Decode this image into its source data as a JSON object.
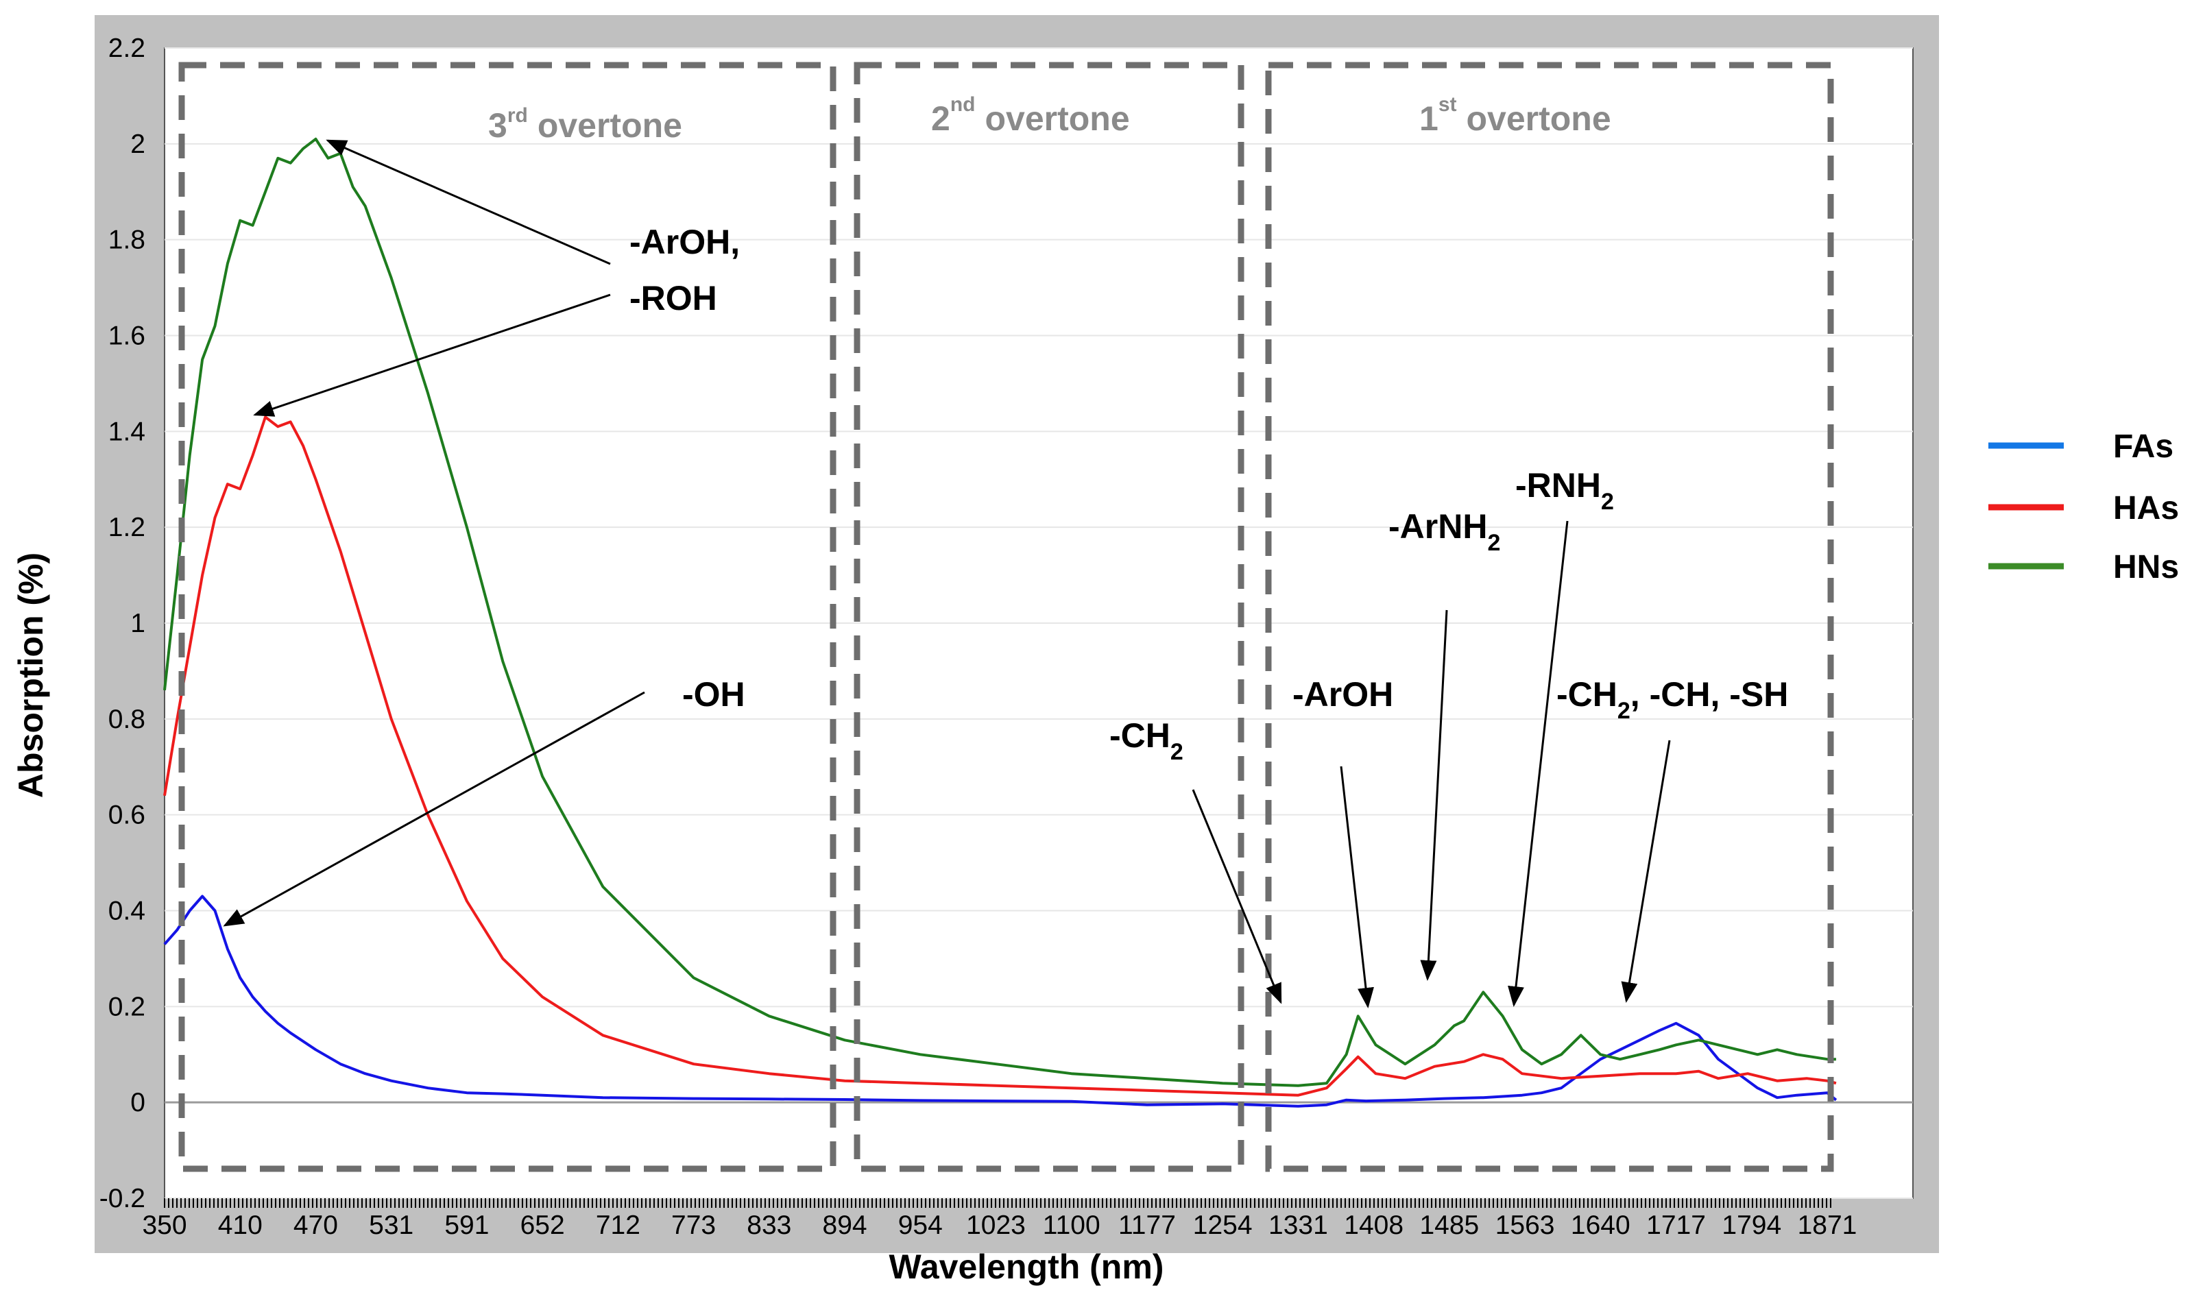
{
  "chart_data": {
    "type": "line",
    "title": "",
    "xlabel": "Wavelength  (nm)",
    "ylabel": "Absorption  (%)",
    "xlim": [
      350,
      1900
    ],
    "ylim": [
      -0.2,
      2.2
    ],
    "xtick_labels": [
      "350",
      "410",
      "470",
      "531",
      "591",
      "652",
      "712",
      "773",
      "833",
      "894",
      "954",
      "1023",
      "1100",
      "1177",
      "1254",
      "1331",
      "1408",
      "1485",
      "1563",
      "1640",
      "1717",
      "1794",
      "1871"
    ],
    "yticks": [
      -0.2,
      0,
      0.2,
      0.4,
      0.6,
      0.8,
      1,
      1.2,
      1.4,
      1.6,
      1.8,
      2,
      2.2
    ],
    "ytick_labels": [
      "-0.2",
      "0",
      "0.2",
      "0.4",
      "0.6",
      "0.8",
      "1",
      "1.2",
      "1.4",
      "1.6",
      "1.8",
      "2",
      "2.2"
    ],
    "series": [
      {
        "name": "FAs",
        "color": "#1414e6",
        "x": [
          350,
          360,
          370,
          380,
          390,
          400,
          410,
          420,
          430,
          440,
          450,
          470,
          490,
          510,
          531,
          560,
          591,
          620,
          652,
          700,
          773,
          833,
          894,
          954,
          1023,
          1100,
          1177,
          1254,
          1331,
          1360,
          1380,
          1400,
          1440,
          1480,
          1520,
          1560,
          1580,
          1600,
          1620,
          1640,
          1660,
          1680,
          1700,
          1717,
          1740,
          1760,
          1780,
          1800,
          1820,
          1840,
          1871,
          1880
        ],
        "values": [
          0.33,
          0.36,
          0.4,
          0.43,
          0.4,
          0.32,
          0.26,
          0.22,
          0.19,
          0.165,
          0.145,
          0.11,
          0.08,
          0.06,
          0.045,
          0.03,
          0.02,
          0.018,
          0.015,
          0.01,
          0.008,
          0.007,
          0.006,
          0.004,
          0.003,
          0.002,
          -0.005,
          -0.003,
          -0.008,
          -0.005,
          0.005,
          0.003,
          0.005,
          0.008,
          0.01,
          0.015,
          0.02,
          0.03,
          0.06,
          0.09,
          0.11,
          0.13,
          0.15,
          0.165,
          0.14,
          0.09,
          0.06,
          0.03,
          0.01,
          0.015,
          0.02,
          0.005
        ]
      },
      {
        "name": "HAs",
        "color": "#ee1c1c",
        "x": [
          350,
          360,
          370,
          380,
          390,
          400,
          410,
          420,
          430,
          440,
          450,
          460,
          470,
          490,
          510,
          531,
          560,
          591,
          620,
          652,
          700,
          773,
          833,
          894,
          954,
          1023,
          1100,
          1177,
          1254,
          1331,
          1360,
          1380,
          1392,
          1410,
          1440,
          1470,
          1500,
          1520,
          1540,
          1560,
          1600,
          1640,
          1680,
          1717,
          1740,
          1760,
          1790,
          1820,
          1850,
          1871,
          1880
        ],
        "values": [
          0.64,
          0.8,
          0.95,
          1.1,
          1.22,
          1.29,
          1.28,
          1.35,
          1.43,
          1.41,
          1.42,
          1.37,
          1.3,
          1.15,
          0.98,
          0.8,
          0.6,
          0.42,
          0.3,
          0.22,
          0.14,
          0.08,
          0.06,
          0.045,
          0.04,
          0.035,
          0.03,
          0.025,
          0.02,
          0.015,
          0.03,
          0.07,
          0.095,
          0.06,
          0.05,
          0.075,
          0.085,
          0.1,
          0.09,
          0.06,
          0.05,
          0.055,
          0.06,
          0.06,
          0.065,
          0.05,
          0.06,
          0.045,
          0.05,
          0.045,
          0.04
        ]
      },
      {
        "name": "HNs",
        "color": "#1e7c1e",
        "x": [
          350,
          360,
          370,
          380,
          390,
          400,
          410,
          420,
          430,
          440,
          450,
          460,
          470,
          480,
          490,
          500,
          510,
          531,
          560,
          591,
          620,
          652,
          700,
          773,
          833,
          894,
          954,
          1023,
          1100,
          1177,
          1254,
          1331,
          1360,
          1380,
          1392,
          1410,
          1440,
          1470,
          1490,
          1500,
          1520,
          1540,
          1560,
          1580,
          1600,
          1620,
          1640,
          1660,
          1680,
          1700,
          1717,
          1740,
          1760,
          1780,
          1800,
          1820,
          1840,
          1871,
          1880
        ],
        "values": [
          0.86,
          1.1,
          1.35,
          1.55,
          1.62,
          1.75,
          1.84,
          1.83,
          1.9,
          1.97,
          1.96,
          1.99,
          2.01,
          1.97,
          1.98,
          1.91,
          1.87,
          1.72,
          1.48,
          1.2,
          0.92,
          0.68,
          0.45,
          0.26,
          0.18,
          0.13,
          0.1,
          0.08,
          0.06,
          0.05,
          0.04,
          0.035,
          0.04,
          0.1,
          0.18,
          0.12,
          0.08,
          0.12,
          0.16,
          0.17,
          0.23,
          0.18,
          0.11,
          0.08,
          0.1,
          0.14,
          0.1,
          0.09,
          0.1,
          0.11,
          0.12,
          0.13,
          0.12,
          0.11,
          0.1,
          0.11,
          0.1,
          0.09,
          0.09
        ]
      }
    ],
    "regions": [
      {
        "label": "overtone",
        "ordinal": "3",
        "sup": "rd"
      },
      {
        "label": "overtone",
        "ordinal": "2",
        "sup": "nd"
      },
      {
        "label": "overtone",
        "ordinal": "1",
        "sup": "st"
      }
    ],
    "annotations": [
      {
        "text": "-ArOH,",
        "sub": ""
      },
      {
        "text": "-ROH",
        "sub": ""
      },
      {
        "text": "-OH",
        "sub": ""
      },
      {
        "text": "-CH",
        "sub": "2"
      },
      {
        "text": "-ArOH",
        "sub": ""
      },
      {
        "text": "-ArNH",
        "sub": "2"
      },
      {
        "text": "-RNH",
        "sub": "2"
      },
      {
        "text": "-CH",
        "sub": "2",
        "tail": ", -CH, -SH"
      }
    ],
    "legend": {
      "position": "right",
      "entries": [
        {
          "label": "FAs",
          "color": "#1478e6"
        },
        {
          "label": "HAs",
          "color": "#ee1c1c"
        },
        {
          "label": "HNs",
          "color": "#3c8c28"
        }
      ]
    }
  }
}
